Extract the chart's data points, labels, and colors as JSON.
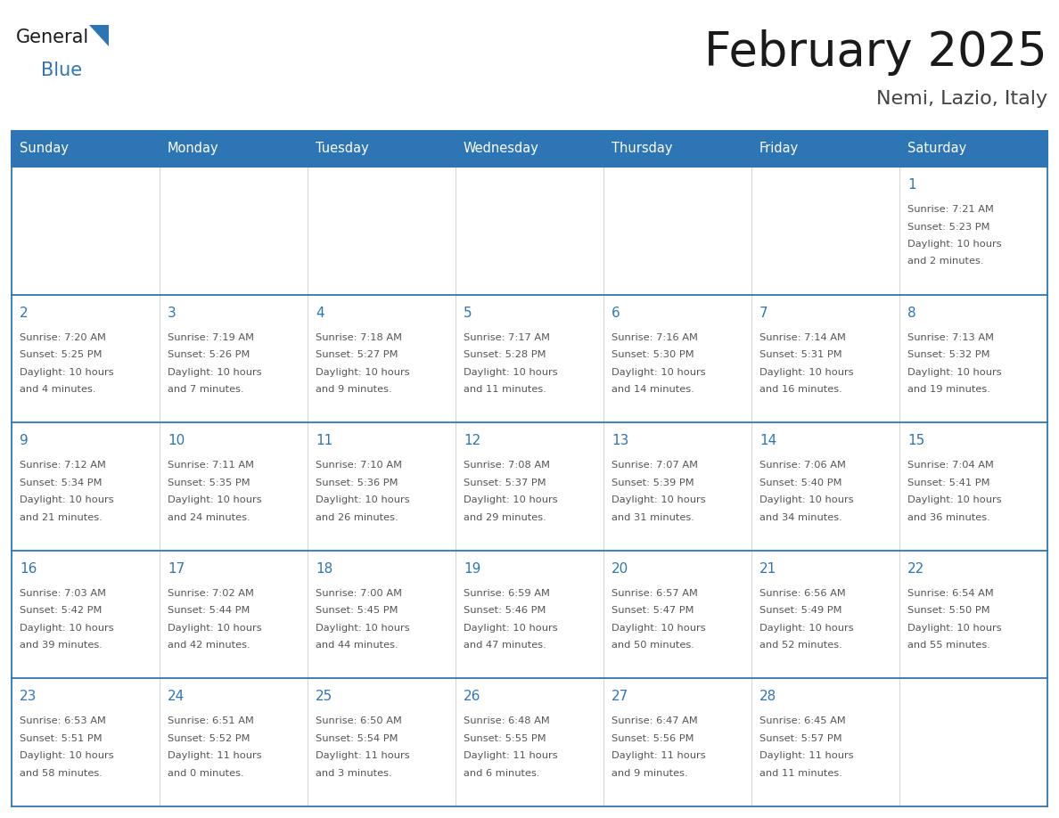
{
  "title": "February 2025",
  "subtitle": "Nemi, Lazio, Italy",
  "header_bg": "#2E75B6",
  "header_text": "#FFFFFF",
  "cell_bg": "#FFFFFF",
  "border_color": "#2E75B6",
  "day_number_color": "#2E75B6",
  "info_color": "#555555",
  "days_of_week": [
    "Sunday",
    "Monday",
    "Tuesday",
    "Wednesday",
    "Thursday",
    "Friday",
    "Saturday"
  ],
  "num_rows": 5,
  "num_cols": 7,
  "logo_general_color": "#1a1a1a",
  "logo_blue_color": "#2E75B6",
  "calendar_data": [
    [
      null,
      null,
      null,
      null,
      null,
      null,
      {
        "day": "1",
        "sunrise": "7:21 AM",
        "sunset": "5:23 PM",
        "daylight1": "10 hours",
        "daylight2": "and 2 minutes."
      }
    ],
    [
      {
        "day": "2",
        "sunrise": "7:20 AM",
        "sunset": "5:25 PM",
        "daylight1": "10 hours",
        "daylight2": "and 4 minutes."
      },
      {
        "day": "3",
        "sunrise": "7:19 AM",
        "sunset": "5:26 PM",
        "daylight1": "10 hours",
        "daylight2": "and 7 minutes."
      },
      {
        "day": "4",
        "sunrise": "7:18 AM",
        "sunset": "5:27 PM",
        "daylight1": "10 hours",
        "daylight2": "and 9 minutes."
      },
      {
        "day": "5",
        "sunrise": "7:17 AM",
        "sunset": "5:28 PM",
        "daylight1": "10 hours",
        "daylight2": "and 11 minutes."
      },
      {
        "day": "6",
        "sunrise": "7:16 AM",
        "sunset": "5:30 PM",
        "daylight1": "10 hours",
        "daylight2": "and 14 minutes."
      },
      {
        "day": "7",
        "sunrise": "7:14 AM",
        "sunset": "5:31 PM",
        "daylight1": "10 hours",
        "daylight2": "and 16 minutes."
      },
      {
        "day": "8",
        "sunrise": "7:13 AM",
        "sunset": "5:32 PM",
        "daylight1": "10 hours",
        "daylight2": "and 19 minutes."
      }
    ],
    [
      {
        "day": "9",
        "sunrise": "7:12 AM",
        "sunset": "5:34 PM",
        "daylight1": "10 hours",
        "daylight2": "and 21 minutes."
      },
      {
        "day": "10",
        "sunrise": "7:11 AM",
        "sunset": "5:35 PM",
        "daylight1": "10 hours",
        "daylight2": "and 24 minutes."
      },
      {
        "day": "11",
        "sunrise": "7:10 AM",
        "sunset": "5:36 PM",
        "daylight1": "10 hours",
        "daylight2": "and 26 minutes."
      },
      {
        "day": "12",
        "sunrise": "7:08 AM",
        "sunset": "5:37 PM",
        "daylight1": "10 hours",
        "daylight2": "and 29 minutes."
      },
      {
        "day": "13",
        "sunrise": "7:07 AM",
        "sunset": "5:39 PM",
        "daylight1": "10 hours",
        "daylight2": "and 31 minutes."
      },
      {
        "day": "14",
        "sunrise": "7:06 AM",
        "sunset": "5:40 PM",
        "daylight1": "10 hours",
        "daylight2": "and 34 minutes."
      },
      {
        "day": "15",
        "sunrise": "7:04 AM",
        "sunset": "5:41 PM",
        "daylight1": "10 hours",
        "daylight2": "and 36 minutes."
      }
    ],
    [
      {
        "day": "16",
        "sunrise": "7:03 AM",
        "sunset": "5:42 PM",
        "daylight1": "10 hours",
        "daylight2": "and 39 minutes."
      },
      {
        "day": "17",
        "sunrise": "7:02 AM",
        "sunset": "5:44 PM",
        "daylight1": "10 hours",
        "daylight2": "and 42 minutes."
      },
      {
        "day": "18",
        "sunrise": "7:00 AM",
        "sunset": "5:45 PM",
        "daylight1": "10 hours",
        "daylight2": "and 44 minutes."
      },
      {
        "day": "19",
        "sunrise": "6:59 AM",
        "sunset": "5:46 PM",
        "daylight1": "10 hours",
        "daylight2": "and 47 minutes."
      },
      {
        "day": "20",
        "sunrise": "6:57 AM",
        "sunset": "5:47 PM",
        "daylight1": "10 hours",
        "daylight2": "and 50 minutes."
      },
      {
        "day": "21",
        "sunrise": "6:56 AM",
        "sunset": "5:49 PM",
        "daylight1": "10 hours",
        "daylight2": "and 52 minutes."
      },
      {
        "day": "22",
        "sunrise": "6:54 AM",
        "sunset": "5:50 PM",
        "daylight1": "10 hours",
        "daylight2": "and 55 minutes."
      }
    ],
    [
      {
        "day": "23",
        "sunrise": "6:53 AM",
        "sunset": "5:51 PM",
        "daylight1": "10 hours",
        "daylight2": "and 58 minutes."
      },
      {
        "day": "24",
        "sunrise": "6:51 AM",
        "sunset": "5:52 PM",
        "daylight1": "11 hours",
        "daylight2": "and 0 minutes."
      },
      {
        "day": "25",
        "sunrise": "6:50 AM",
        "sunset": "5:54 PM",
        "daylight1": "11 hours",
        "daylight2": "and 3 minutes."
      },
      {
        "day": "26",
        "sunrise": "6:48 AM",
        "sunset": "5:55 PM",
        "daylight1": "11 hours",
        "daylight2": "and 6 minutes."
      },
      {
        "day": "27",
        "sunrise": "6:47 AM",
        "sunset": "5:56 PM",
        "daylight1": "11 hours",
        "daylight2": "and 9 minutes."
      },
      {
        "day": "28",
        "sunrise": "6:45 AM",
        "sunset": "5:57 PM",
        "daylight1": "11 hours",
        "daylight2": "and 11 minutes."
      },
      null
    ]
  ]
}
